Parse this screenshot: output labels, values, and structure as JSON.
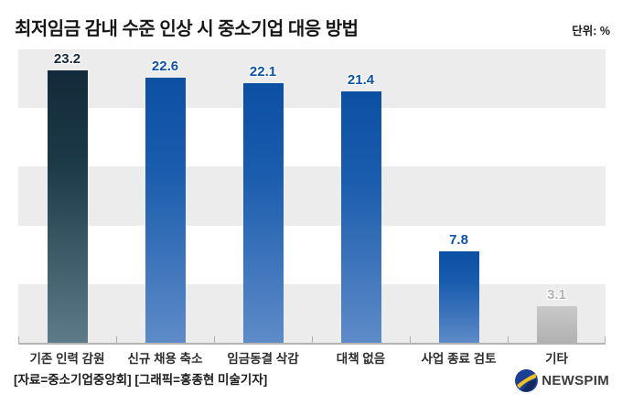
{
  "header": {
    "title": "최저임금 감내 수준 인상 시 중소기업 대응 방법",
    "unit_label": "단위: %"
  },
  "footer": {
    "source_label": "[자료=중소기업중앙회] [그래픽=홍종현 미술기자]",
    "logo_text": "NEWSPIM",
    "logo_icon": "newspim-swoosh-icon"
  },
  "chart_data": {
    "type": "bar",
    "title": "최저임금 감내 수준 인상 시 중소기업 대응 방법",
    "unit": "%",
    "categories": [
      "기존 인력 감원",
      "신규 채용 축소",
      "임금동결 삭감",
      "대책 없음",
      "사업 종료 검토",
      "기타"
    ],
    "values": [
      23.2,
      22.6,
      22.1,
      21.4,
      7.8,
      3.1
    ],
    "bar_styles": [
      "dark",
      "blue",
      "blue",
      "blue",
      "blue",
      "gray"
    ],
    "ylim": [
      0,
      25
    ],
    "grid_band_step": 5,
    "grid": "horizontal-bands",
    "legend": "none",
    "xlabel": "",
    "ylabel": "",
    "colors": {
      "bar_dark_top": "#122a39",
      "bar_dark_bottom": "#5d7b88",
      "bar_blue_top": "#0c50a4",
      "bar_blue_bottom": "#5e8bc8",
      "bar_gray_top": "#c9c9c9",
      "bar_gray_bottom": "#b1b1b1",
      "band_gray": "#ececec",
      "axis": "#b5b5b5",
      "value_label_dark": "#16293a",
      "value_label_blue": "#0d52a6",
      "value_label_gray": "#b3b4b6"
    }
  }
}
